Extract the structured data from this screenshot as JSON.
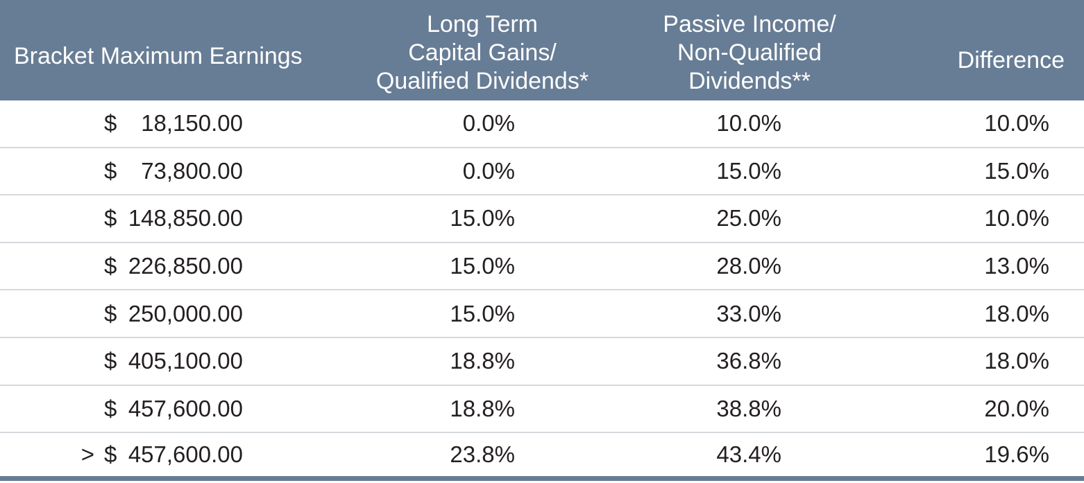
{
  "chart_data": {
    "type": "table",
    "columns": [
      "Bracket Maximum Earnings",
      "Long Term Capital Gains/ Qualified Dividends*",
      "Passive Income/ Non-Qualified Dividends**",
      "Difference"
    ],
    "header": {
      "bracket": [
        "Bracket Maximum Earnings"
      ],
      "ltcg": [
        "Long Term",
        "Capital Gains/",
        "Qualified Dividends*"
      ],
      "passive": [
        "Passive Income/",
        "Non-Qualified",
        "Dividends**"
      ],
      "difference": [
        "Difference"
      ]
    },
    "rows": [
      {
        "prefix": "",
        "currency": "$",
        "amount": "18,150.00",
        "ltcg": "0.0%",
        "passive": "10.0%",
        "difference": "10.0%"
      },
      {
        "prefix": "",
        "currency": "$",
        "amount": "73,800.00",
        "ltcg": "0.0%",
        "passive": "15.0%",
        "difference": "15.0%"
      },
      {
        "prefix": "",
        "currency": "$",
        "amount": "148,850.00",
        "ltcg": "15.0%",
        "passive": "25.0%",
        "difference": "10.0%"
      },
      {
        "prefix": "",
        "currency": "$",
        "amount": "226,850.00",
        "ltcg": "15.0%",
        "passive": "28.0%",
        "difference": "13.0%"
      },
      {
        "prefix": "",
        "currency": "$",
        "amount": "250,000.00",
        "ltcg": "15.0%",
        "passive": "33.0%",
        "difference": "18.0%"
      },
      {
        "prefix": "",
        "currency": "$",
        "amount": "405,100.00",
        "ltcg": "18.8%",
        "passive": "36.8%",
        "difference": "18.0%"
      },
      {
        "prefix": "",
        "currency": "$",
        "amount": "457,600.00",
        "ltcg": "18.8%",
        "passive": "38.8%",
        "difference": "20.0%"
      },
      {
        "prefix": ">",
        "currency": "$",
        "amount": "457,600.00",
        "ltcg": "23.8%",
        "passive": "43.4%",
        "difference": "19.6%"
      }
    ]
  },
  "colors": {
    "header_bg": "#677d95",
    "header_text": "#ffffff",
    "row_divider": "#d5d8dc",
    "body_text": "#231f20"
  }
}
